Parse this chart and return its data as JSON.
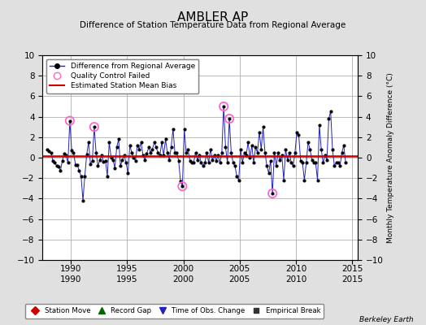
{
  "title": "AMBLER AP",
  "subtitle": "Difference of Station Temperature Data from Regional Average",
  "ylabel_right": "Monthly Temperature Anomaly Difference (°C)",
  "ylim": [
    -10,
    10
  ],
  "xlim": [
    1987.5,
    2015.5
  ],
  "bias": 0.15,
  "background_color": "#e0e0e0",
  "plot_bg_color": "#ffffff",
  "grid_color": "#b0b0b0",
  "series_color": "#2222bb",
  "bias_color": "#cc0000",
  "qc_color": "#ff66cc",
  "xticks": [
    1990,
    1995,
    2000,
    2005,
    2010,
    2015
  ],
  "yticks": [
    -10,
    -8,
    -6,
    -4,
    -2,
    0,
    2,
    4,
    6,
    8,
    10
  ],
  "time_series": [
    [
      1987.917,
      0.8
    ],
    [
      1988.083,
      0.6
    ],
    [
      1988.25,
      0.5
    ],
    [
      1988.417,
      -0.3
    ],
    [
      1988.583,
      -0.5
    ],
    [
      1988.75,
      -0.8
    ],
    [
      1988.917,
      -0.9
    ],
    [
      1989.083,
      -1.3
    ],
    [
      1989.25,
      -0.3
    ],
    [
      1989.417,
      0.4
    ],
    [
      1989.583,
      0.2
    ],
    [
      1989.75,
      -0.5
    ],
    [
      1989.917,
      3.6
    ],
    [
      1990.083,
      0.7
    ],
    [
      1990.25,
      0.5
    ],
    [
      1990.417,
      -0.7
    ],
    [
      1990.583,
      -0.7
    ],
    [
      1990.75,
      -1.3
    ],
    [
      1990.917,
      -1.8
    ],
    [
      1991.083,
      -4.2
    ],
    [
      1991.25,
      -1.8
    ],
    [
      1991.417,
      0.3
    ],
    [
      1991.583,
      1.5
    ],
    [
      1991.75,
      -0.6
    ],
    [
      1991.917,
      -0.3
    ],
    [
      1992.083,
      3.0
    ],
    [
      1992.25,
      0.5
    ],
    [
      1992.417,
      -0.8
    ],
    [
      1992.583,
      -0.2
    ],
    [
      1992.75,
      0.2
    ],
    [
      1992.917,
      -0.4
    ],
    [
      1993.083,
      -0.3
    ],
    [
      1993.25,
      -1.8
    ],
    [
      1993.417,
      1.5
    ],
    [
      1993.583,
      0.0
    ],
    [
      1993.75,
      -0.2
    ],
    [
      1993.917,
      -1.0
    ],
    [
      1994.083,
      1.0
    ],
    [
      1994.25,
      1.8
    ],
    [
      1994.417,
      -0.8
    ],
    [
      1994.583,
      -0.2
    ],
    [
      1994.75,
      0.2
    ],
    [
      1994.917,
      -0.5
    ],
    [
      1995.083,
      -1.5
    ],
    [
      1995.25,
      1.2
    ],
    [
      1995.417,
      0.5
    ],
    [
      1995.583,
      0.0
    ],
    [
      1995.75,
      -0.3
    ],
    [
      1995.917,
      1.2
    ],
    [
      1996.083,
      0.8
    ],
    [
      1996.25,
      1.5
    ],
    [
      1996.417,
      0.2
    ],
    [
      1996.583,
      -0.2
    ],
    [
      1996.75,
      0.4
    ],
    [
      1996.917,
      1.0
    ],
    [
      1997.083,
      0.5
    ],
    [
      1997.25,
      0.8
    ],
    [
      1997.417,
      1.5
    ],
    [
      1997.583,
      1.0
    ],
    [
      1997.75,
      0.5
    ],
    [
      1997.917,
      0.2
    ],
    [
      1998.083,
      1.5
    ],
    [
      1998.25,
      0.2
    ],
    [
      1998.417,
      1.8
    ],
    [
      1998.583,
      0.5
    ],
    [
      1998.75,
      -0.2
    ],
    [
      1998.917,
      1.0
    ],
    [
      1999.083,
      2.8
    ],
    [
      1999.25,
      0.5
    ],
    [
      1999.417,
      0.5
    ],
    [
      1999.583,
      -0.3
    ],
    [
      1999.75,
      -2.3
    ],
    [
      1999.917,
      -2.8
    ],
    [
      2000.083,
      2.8
    ],
    [
      2000.25,
      0.5
    ],
    [
      2000.417,
      0.8
    ],
    [
      2000.583,
      -0.3
    ],
    [
      2000.75,
      -0.5
    ],
    [
      2000.917,
      -0.5
    ],
    [
      2001.083,
      0.5
    ],
    [
      2001.25,
      -0.2
    ],
    [
      2001.417,
      0.2
    ],
    [
      2001.583,
      -0.5
    ],
    [
      2001.75,
      -0.8
    ],
    [
      2001.917,
      -0.5
    ],
    [
      2002.083,
      0.5
    ],
    [
      2002.25,
      -0.5
    ],
    [
      2002.417,
      0.8
    ],
    [
      2002.583,
      -0.2
    ],
    [
      2002.75,
      0.2
    ],
    [
      2002.917,
      -0.3
    ],
    [
      2003.083,
      0.2
    ],
    [
      2003.25,
      -0.5
    ],
    [
      2003.417,
      0.5
    ],
    [
      2003.583,
      5.0
    ],
    [
      2003.75,
      1.0
    ],
    [
      2003.917,
      -0.5
    ],
    [
      2004.083,
      3.8
    ],
    [
      2004.25,
      0.5
    ],
    [
      2004.417,
      -0.5
    ],
    [
      2004.583,
      -0.8
    ],
    [
      2004.75,
      -1.8
    ],
    [
      2004.917,
      -2.2
    ],
    [
      2005.083,
      0.8
    ],
    [
      2005.25,
      -0.5
    ],
    [
      2005.417,
      0.5
    ],
    [
      2005.583,
      0.2
    ],
    [
      2005.75,
      1.5
    ],
    [
      2005.917,
      0.0
    ],
    [
      2006.083,
      1.2
    ],
    [
      2006.25,
      -0.5
    ],
    [
      2006.417,
      1.0
    ],
    [
      2006.583,
      0.5
    ],
    [
      2006.75,
      2.5
    ],
    [
      2006.917,
      0.8
    ],
    [
      2007.083,
      3.0
    ],
    [
      2007.25,
      0.5
    ],
    [
      2007.417,
      -0.8
    ],
    [
      2007.583,
      -1.5
    ],
    [
      2007.75,
      -0.3
    ],
    [
      2007.917,
      -3.5
    ],
    [
      2008.083,
      0.5
    ],
    [
      2008.25,
      -0.8
    ],
    [
      2008.417,
      0.5
    ],
    [
      2008.583,
      -0.2
    ],
    [
      2008.75,
      0.2
    ],
    [
      2008.917,
      -2.2
    ],
    [
      2009.083,
      0.8
    ],
    [
      2009.25,
      -0.2
    ],
    [
      2009.417,
      0.5
    ],
    [
      2009.583,
      -0.5
    ],
    [
      2009.75,
      -0.8
    ],
    [
      2009.917,
      0.5
    ],
    [
      2010.083,
      2.5
    ],
    [
      2010.25,
      2.2
    ],
    [
      2010.417,
      -0.3
    ],
    [
      2010.583,
      -0.5
    ],
    [
      2010.75,
      -2.2
    ],
    [
      2010.917,
      -0.5
    ],
    [
      2011.083,
      1.5
    ],
    [
      2011.25,
      0.8
    ],
    [
      2011.417,
      -0.2
    ],
    [
      2011.583,
      -0.5
    ],
    [
      2011.75,
      -0.5
    ],
    [
      2011.917,
      -2.2
    ],
    [
      2012.083,
      3.2
    ],
    [
      2012.25,
      0.8
    ],
    [
      2012.417,
      -0.5
    ],
    [
      2012.583,
      0.2
    ],
    [
      2012.75,
      -0.2
    ],
    [
      2012.917,
      3.8
    ],
    [
      2013.083,
      4.5
    ],
    [
      2013.25,
      0.8
    ],
    [
      2013.417,
      -0.8
    ],
    [
      2013.583,
      -0.5
    ],
    [
      2013.75,
      -0.5
    ],
    [
      2013.917,
      -0.8
    ],
    [
      2014.083,
      0.5
    ],
    [
      2014.25,
      1.2
    ],
    [
      2014.417,
      -0.5
    ]
  ],
  "qc_failed": [
    [
      1989.917,
      3.6
    ],
    [
      1992.083,
      3.0
    ],
    [
      1999.917,
      -2.8
    ],
    [
      2003.583,
      5.0
    ],
    [
      2004.083,
      3.8
    ],
    [
      2007.917,
      -3.5
    ]
  ],
  "legend2_items": [
    {
      "label": "Station Move",
      "color": "#cc0000",
      "marker": "D"
    },
    {
      "label": "Record Gap",
      "color": "#006600",
      "marker": "^"
    },
    {
      "label": "Time of Obs. Change",
      "color": "#2222bb",
      "marker": "v"
    },
    {
      "label": "Empirical Break",
      "color": "#333333",
      "marker": "s"
    }
  ],
  "watermark": "Berkeley Earth"
}
